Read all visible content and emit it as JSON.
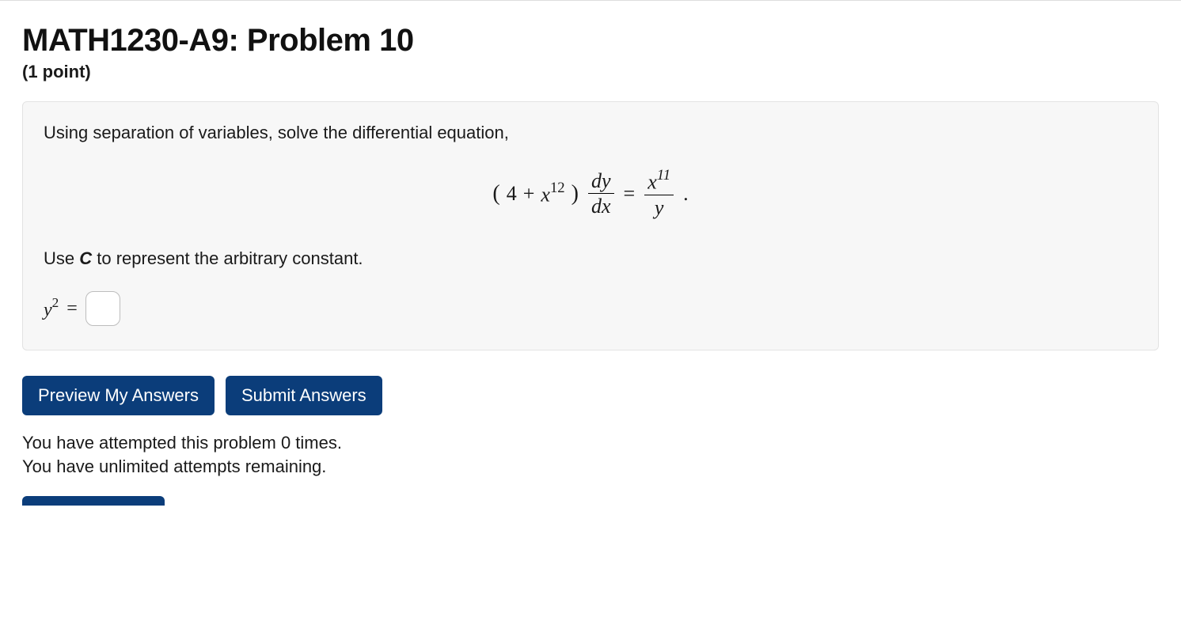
{
  "header": {
    "title": "MATH1230-A9: Problem 10",
    "points": "(1 point)"
  },
  "problem": {
    "intro": "Using separation of variables, solve the differential equation,",
    "equation": {
      "left_coeff": "4",
      "left_var": "x",
      "left_exp": "12",
      "deriv_num": "dy",
      "deriv_den": "dx",
      "equals": "=",
      "rhs_num_var": "x",
      "rhs_num_exp": "11",
      "rhs_den": "y",
      "trailing": "."
    },
    "constant_instruction_prefix": "Use ",
    "constant_symbol": "C",
    "constant_instruction_suffix": " to represent the arbitrary constant.",
    "answer_lhs_var": "y",
    "answer_lhs_exp": "2",
    "answer_eq": "=",
    "answer_value": ""
  },
  "buttons": {
    "preview": "Preview My Answers",
    "submit": "Submit Answers"
  },
  "status": {
    "attempted": "You have attempted this problem 0 times.",
    "remaining": "You have unlimited attempts remaining."
  },
  "colors": {
    "button_bg": "#0b3d7a",
    "box_bg": "#f7f7f7",
    "box_border": "#e3e3e3"
  }
}
